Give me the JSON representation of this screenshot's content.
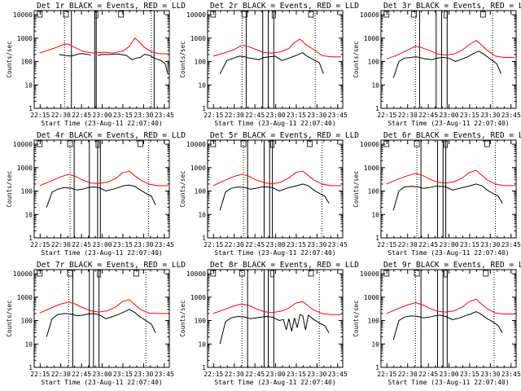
{
  "figure": {
    "x_tick_labels": [
      "22:15",
      "22:30",
      "22:45",
      "23:00",
      "23:15",
      "23:30",
      "23:45"
    ],
    "y_tick_labels": [
      "1",
      "10",
      "100",
      "1000",
      "10000"
    ],
    "xlabel": "Start Time (23-Aug-11 22:07:40)",
    "ylabel": "Counts/sec",
    "colors": {
      "events": "#000000",
      "lld": "#ff0000",
      "axes": "#000000"
    }
  },
  "chart_data": [
    {
      "type": "line",
      "title": "Det 1r BLACK = Events, RED = LLD",
      "x_unit": "minutes after 22:07:40",
      "xlim": [
        3,
        101
      ],
      "ylim": [
        1,
        15000
      ],
      "yscale": "log",
      "annotations": {
        "S": 7,
        "F": 26,
        "E": 66,
        "mid_marker": 48
      },
      "dotted_lines": [
        25,
        88
      ],
      "solid_lines": [
        30,
        47,
        48,
        90
      ],
      "series": [
        {
          "name": "Events",
          "x": [
            21,
            26,
            30,
            35,
            38,
            44,
            47,
            49,
            52,
            58,
            64,
            70,
            74,
            77,
            80,
            83,
            86,
            90,
            95,
            98,
            100
          ],
          "y": [
            200,
            180,
            170,
            210,
            220,
            190,
            0,
            180,
            200,
            200,
            210,
            180,
            120,
            140,
            150,
            200,
            190,
            140,
            110,
            80,
            30
          ]
        },
        {
          "name": "LLD",
          "x": [
            7,
            18,
            25,
            28,
            32,
            37,
            40,
            46,
            48,
            50,
            54,
            60,
            68,
            72,
            76,
            79,
            83,
            88,
            93,
            100
          ],
          "y": [
            230,
            380,
            560,
            550,
            410,
            300,
            260,
            230,
            240,
            240,
            250,
            230,
            290,
            450,
            1000,
            700,
            400,
            260,
            220,
            210
          ]
        }
      ]
    },
    {
      "type": "line",
      "title": "Det 2r BLACK = Events, RED = LLD",
      "x_unit": "minutes after 22:07:40",
      "xlim": [
        3,
        101
      ],
      "ylim": [
        1,
        15000
      ],
      "yscale": "log",
      "annotations": {
        "S": 7,
        "F": 30,
        "E": 78,
        "mid_marker": 51
      },
      "dotted_lines": [
        28,
        81
      ],
      "solid_lines": [
        31,
        43,
        47,
        51
      ],
      "series": [
        {
          "name": "Events",
          "x": [
            12,
            17,
            22,
            26,
            30,
            33,
            37,
            40,
            44,
            48,
            52,
            57,
            62,
            66,
            72,
            75,
            80,
            84,
            87
          ],
          "y": [
            30,
            110,
            140,
            170,
            160,
            140,
            130,
            120,
            150,
            160,
            170,
            110,
            140,
            170,
            240,
            170,
            120,
            90,
            30
          ]
        },
        {
          "name": "LLD",
          "x": [
            7,
            15,
            22,
            28,
            32,
            38,
            44,
            50,
            56,
            62,
            66,
            70,
            74,
            80,
            86,
            92,
            100
          ],
          "y": [
            170,
            230,
            320,
            500,
            450,
            330,
            240,
            230,
            260,
            360,
            650,
            900,
            550,
            320,
            180,
            160,
            160
          ]
        }
      ]
    },
    {
      "type": "line",
      "title": "Det 3r BLACK = Events, RED = LLD",
      "x_unit": "minutes after 22:07:40",
      "xlim": [
        3,
        101
      ],
      "ylim": [
        1,
        15000
      ],
      "yscale": "log",
      "annotations": {
        "S": 7,
        "F": 27,
        "E": 77,
        "mid_marker": 50
      },
      "dotted_lines": [
        28,
        84
      ],
      "solid_lines": [
        31,
        43,
        47,
        51
      ],
      "series": [
        {
          "name": "Events",
          "x": [
            12,
            16,
            20,
            25,
            28,
            31,
            35,
            40,
            44,
            48,
            52,
            57,
            62,
            66,
            70,
            74,
            79,
            83,
            87,
            90
          ],
          "y": [
            20,
            100,
            140,
            150,
            160,
            150,
            130,
            120,
            140,
            150,
            140,
            100,
            130,
            160,
            220,
            280,
            180,
            120,
            80,
            30
          ]
        },
        {
          "name": "LLD",
          "x": [
            7,
            14,
            22,
            28,
            32,
            38,
            44,
            50,
            56,
            62,
            67,
            72,
            76,
            80,
            86,
            92,
            100
          ],
          "y": [
            130,
            180,
            300,
            450,
            400,
            300,
            210,
            190,
            210,
            310,
            520,
            800,
            500,
            300,
            170,
            150,
            150
          ]
        }
      ]
    },
    {
      "type": "line",
      "title": "Det 4r BLACK = Events, RED = LLD",
      "x_unit": "minutes after 22:07:40",
      "xlim": [
        3,
        101
      ],
      "ylim": [
        1,
        15000
      ],
      "yscale": "log",
      "annotations": {
        "S": 7,
        "F": 29,
        "E": 80,
        "mid_marker": 49
      },
      "dotted_lines": [
        29,
        86
      ],
      "solid_lines": [
        32,
        43,
        49,
        51
      ],
      "series": [
        {
          "name": "Events",
          "x": [
            12,
            16,
            20,
            25,
            30,
            34,
            38,
            42,
            46,
            50,
            55,
            60,
            64,
            68,
            72,
            76,
            80,
            84,
            88,
            91
          ],
          "y": [
            20,
            90,
            120,
            140,
            130,
            110,
            120,
            140,
            150,
            140,
            100,
            120,
            140,
            170,
            180,
            160,
            110,
            80,
            60,
            25
          ]
        },
        {
          "name": "LLD",
          "x": [
            7,
            14,
            22,
            28,
            33,
            38,
            44,
            50,
            56,
            62,
            67,
            72,
            76,
            80,
            86,
            92,
            100
          ],
          "y": [
            170,
            250,
            400,
            520,
            420,
            300,
            220,
            210,
            240,
            340,
            600,
            700,
            450,
            300,
            200,
            170,
            170
          ]
        }
      ]
    },
    {
      "type": "line",
      "title": "Det 5r BLACK = Events, RED = LLD",
      "x_unit": "minutes after 22:07:40",
      "xlim": [
        3,
        101
      ],
      "ylim": [
        1,
        15000
      ],
      "yscale": "log",
      "annotations": {
        "S": 7,
        "F": 29,
        "E": 77,
        "mid_marker": 50
      },
      "dotted_lines": [
        29,
        86
      ],
      "solid_lines": [
        32,
        44,
        48,
        50
      ],
      "series": [
        {
          "name": "Events",
          "x": [
            12,
            16,
            20,
            25,
            30,
            34,
            38,
            42,
            46,
            50,
            55,
            60,
            64,
            68,
            72,
            76,
            80,
            84,
            88,
            91
          ],
          "y": [
            15,
            90,
            130,
            150,
            140,
            120,
            130,
            150,
            150,
            140,
            100,
            130,
            150,
            170,
            200,
            170,
            110,
            80,
            60,
            30
          ]
        },
        {
          "name": "LLD",
          "x": [
            7,
            14,
            22,
            28,
            33,
            38,
            44,
            50,
            56,
            62,
            67,
            72,
            76,
            80,
            86,
            92,
            100
          ],
          "y": [
            170,
            260,
            420,
            520,
            430,
            300,
            230,
            200,
            240,
            360,
            620,
            720,
            460,
            300,
            200,
            170,
            170
          ]
        }
      ]
    },
    {
      "type": "line",
      "title": "Det 6r BLACK = Events, RED = LLD",
      "x_unit": "minutes after 22:07:40",
      "xlim": [
        3,
        101
      ],
      "ylim": [
        1,
        15000
      ],
      "yscale": "log",
      "annotations": {
        "S": 7,
        "F": 29,
        "E": 80,
        "mid_marker": 50
      },
      "dotted_lines": [
        29,
        86
      ],
      "solid_lines": [
        32,
        44,
        48,
        50
      ],
      "series": [
        {
          "name": "Events",
          "x": [
            12,
            16,
            20,
            25,
            30,
            34,
            38,
            42,
            46,
            50,
            55,
            60,
            64,
            68,
            72,
            76,
            80,
            84,
            88,
            91
          ],
          "y": [
            15,
            100,
            150,
            160,
            150,
            130,
            140,
            160,
            160,
            150,
            110,
            130,
            150,
            170,
            200,
            170,
            110,
            80,
            60,
            30
          ]
        },
        {
          "name": "LLD",
          "x": [
            7,
            14,
            22,
            28,
            33,
            38,
            44,
            50,
            56,
            62,
            67,
            72,
            76,
            80,
            86,
            92,
            100
          ],
          "y": [
            200,
            300,
            450,
            560,
            470,
            330,
            240,
            220,
            250,
            360,
            620,
            760,
            480,
            300,
            200,
            170,
            170
          ]
        }
      ]
    },
    {
      "type": "line",
      "title": "Det 7r BLACK = Events, RED = LLD",
      "x_unit": "minutes after 22:07:40",
      "xlim": [
        3,
        101
      ],
      "ylim": [
        1,
        15000
      ],
      "yscale": "log",
      "annotations": {
        "S": 7,
        "F": 29,
        "E": 77,
        "mid_marker": 50
      },
      "dotted_lines": [
        28,
        84
      ],
      "solid_lines": [
        31,
        43,
        46,
        50
      ],
      "series": [
        {
          "name": "Events",
          "x": [
            12,
            16,
            20,
            25,
            30,
            34,
            38,
            42,
            46,
            50,
            55,
            60,
            64,
            68,
            72,
            76,
            80,
            84,
            88,
            91
          ],
          "y": [
            20,
            120,
            180,
            200,
            190,
            160,
            170,
            190,
            200,
            180,
            120,
            150,
            180,
            230,
            300,
            220,
            140,
            100,
            70,
            30
          ]
        },
        {
          "name": "LLD",
          "x": [
            7,
            14,
            22,
            28,
            33,
            38,
            44,
            50,
            56,
            62,
            67,
            72,
            76,
            80,
            86,
            92,
            100
          ],
          "y": [
            210,
            320,
            500,
            620,
            500,
            360,
            260,
            230,
            260,
            380,
            650,
            780,
            480,
            300,
            210,
            200,
            200
          ]
        }
      ]
    },
    {
      "type": "line",
      "title": "Det 8r BLACK = Events, RED = LLD",
      "x_unit": "minutes after 22:07:40",
      "xlim": [
        3,
        101
      ],
      "ylim": [
        1,
        15000
      ],
      "yscale": "log",
      "annotations": {
        "S": 7,
        "F": 28,
        "E": 78,
        "mid_marker": 50
      },
      "dotted_lines": [
        28,
        84
      ],
      "solid_lines": [
        32,
        44,
        47,
        51
      ],
      "series": [
        {
          "name": "Events",
          "x": [
            12,
            16,
            20,
            25,
            30,
            34,
            38,
            42,
            46,
            50,
            55,
            58,
            60,
            62,
            64,
            66,
            68,
            70,
            72,
            74,
            76,
            80,
            84,
            88,
            91
          ],
          "y": [
            10,
            90,
            130,
            150,
            140,
            120,
            130,
            140,
            150,
            140,
            100,
            110,
            40,
            120,
            35,
            130,
            50,
            180,
            160,
            40,
            170,
            110,
            80,
            60,
            30
          ]
        },
        {
          "name": "LLD",
          "x": [
            7,
            14,
            22,
            28,
            33,
            38,
            44,
            50,
            56,
            62,
            67,
            72,
            76,
            80,
            86,
            92,
            100
          ],
          "y": [
            200,
            280,
            420,
            520,
            440,
            320,
            240,
            220,
            250,
            340,
            560,
            650,
            420,
            280,
            200,
            180,
            180
          ]
        }
      ]
    },
    {
      "type": "line",
      "title": "Det 9r BLACK = Events, RED = LLD",
      "x_unit": "minutes after 22:07:40",
      "xlim": [
        3,
        101
      ],
      "ylim": [
        1,
        15000
      ],
      "yscale": "log",
      "annotations": {
        "S": 7,
        "F": 29,
        "E": 79,
        "mid_marker": 50
      },
      "dotted_lines": [
        28,
        85
      ],
      "solid_lines": [
        32,
        44,
        48,
        51
      ],
      "series": [
        {
          "name": "Events",
          "x": [
            12,
            16,
            20,
            25,
            30,
            34,
            38,
            42,
            46,
            50,
            55,
            60,
            64,
            68,
            72,
            76,
            80,
            84,
            88,
            91
          ],
          "y": [
            15,
            100,
            140,
            160,
            150,
            130,
            140,
            160,
            170,
            150,
            110,
            130,
            160,
            190,
            240,
            180,
            120,
            90,
            60,
            30
          ]
        },
        {
          "name": "LLD",
          "x": [
            7,
            14,
            22,
            28,
            33,
            38,
            44,
            50,
            56,
            62,
            67,
            72,
            76,
            80,
            86,
            92,
            100
          ],
          "y": [
            200,
            300,
            460,
            580,
            480,
            340,
            250,
            230,
            260,
            380,
            640,
            820,
            500,
            320,
            210,
            190,
            190
          ]
        }
      ]
    }
  ]
}
